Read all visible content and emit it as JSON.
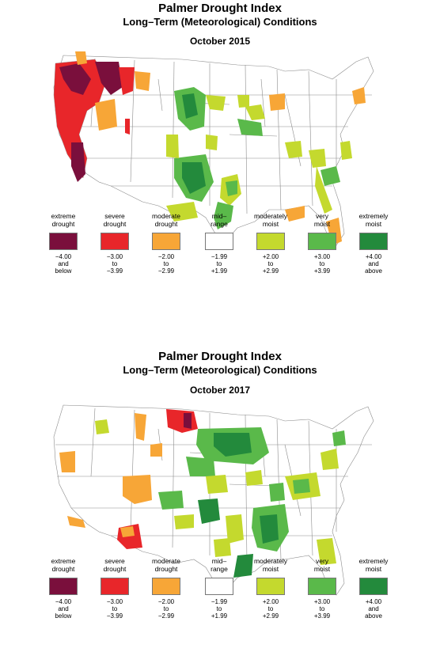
{
  "colors": {
    "extreme": "#7a0f3c",
    "severe": "#e8262a",
    "moderate": "#f7a637",
    "mid": "#ffffff",
    "moderately_moist": "#c4d92e",
    "very_moist": "#5ab94a",
    "extremely_moist": "#238a3c",
    "outline": "#8c8c8c"
  },
  "legend": [
    {
      "label": "extreme\ndrought",
      "range": "−4.00\nand\nbelow",
      "color": "#7a0f3c"
    },
    {
      "label": "severe\ndrought",
      "range": "−3.00\nto\n−3.99",
      "color": "#e8262a"
    },
    {
      "label": "moderate\ndrought",
      "range": "−2.00\nto\n−2.99",
      "color": "#f7a637"
    },
    {
      "label": "mid–\nrange",
      "range": "−1.99\nto\n+1.99",
      "color": "#ffffff"
    },
    {
      "label": "moderately\nmoist",
      "range": "+2.00\nto\n+2.99",
      "color": "#c4d92e"
    },
    {
      "label": "very\nmoist",
      "range": "+3.00\nto\n+3.99",
      "color": "#5ab94a"
    },
    {
      "label": "extremely\nmoist",
      "range": "+4.00\nand\nabove",
      "color": "#238a3c"
    }
  ],
  "maps": [
    {
      "title": "Palmer Drought Index",
      "subtitle": "Long–Term (Meteorological) Conditions",
      "date": "October 2015"
    },
    {
      "title": "Palmer Drought Index",
      "subtitle": "Long–Term (Meteorological) Conditions",
      "date": "October 2017"
    }
  ]
}
